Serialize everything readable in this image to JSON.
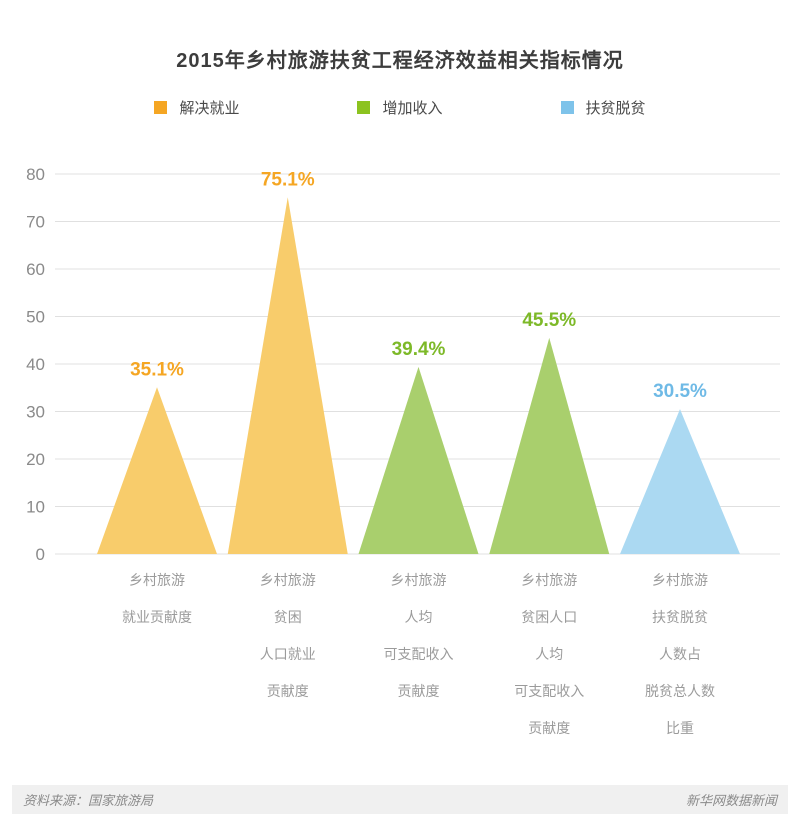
{
  "title": "2015年乡村旅游扶贫工程经济效益相关指标情况",
  "legend": [
    {
      "label": "解决就业",
      "color": "#F5A623"
    },
    {
      "label": "增加收入",
      "color": "#8CC320"
    },
    {
      "label": "扶贫脱贫",
      "color": "#7EC3EA"
    }
  ],
  "footer": {
    "source": "资料来源：国家旅游局",
    "credit": "新华网数据新闻"
  },
  "chart_data": {
    "type": "bar",
    "shape": "triangle",
    "title": "2015年乡村旅游扶贫工程经济效益相关指标情况",
    "xlabel": "",
    "ylabel": "",
    "ylim": [
      0,
      80
    ],
    "yticks": [
      0,
      10,
      20,
      30,
      40,
      50,
      60,
      70,
      80
    ],
    "grid": true,
    "gridline_color": "#e0e0e0",
    "legend_position": "top",
    "categories": [
      [
        "乡村旅游",
        "就业贡献度"
      ],
      [
        "乡村旅游",
        "贫困",
        "人口就业",
        "贡献度"
      ],
      [
        "乡村旅游",
        "人均",
        "可支配收入",
        "贡献度"
      ],
      [
        "乡村旅游",
        "贫困人口",
        "人均",
        "可支配收入",
        "贡献度"
      ],
      [
        "乡村旅游",
        "扶贫脱贫",
        "人数占",
        "脱贫总人数",
        "比重"
      ]
    ],
    "points": [
      {
        "value": 35.1,
        "label": "35.1%",
        "series": "解决就业",
        "fill": "#F8CC6B",
        "label_color": "#F5A623"
      },
      {
        "value": 75.1,
        "label": "75.1%",
        "series": "解决就业",
        "fill": "#F8CC6B",
        "label_color": "#F5A623"
      },
      {
        "value": 39.4,
        "label": "39.4%",
        "series": "增加收入",
        "fill": "#A9CF6D",
        "label_color": "#7DB928"
      },
      {
        "value": 45.5,
        "label": "45.5%",
        "series": "增加收入",
        "fill": "#A9CF6D",
        "label_color": "#7DB928"
      },
      {
        "value": 30.5,
        "label": "30.5%",
        "series": "扶贫脱贫",
        "fill": "#ABD9F2",
        "label_color": "#6FBAE6"
      }
    ]
  }
}
